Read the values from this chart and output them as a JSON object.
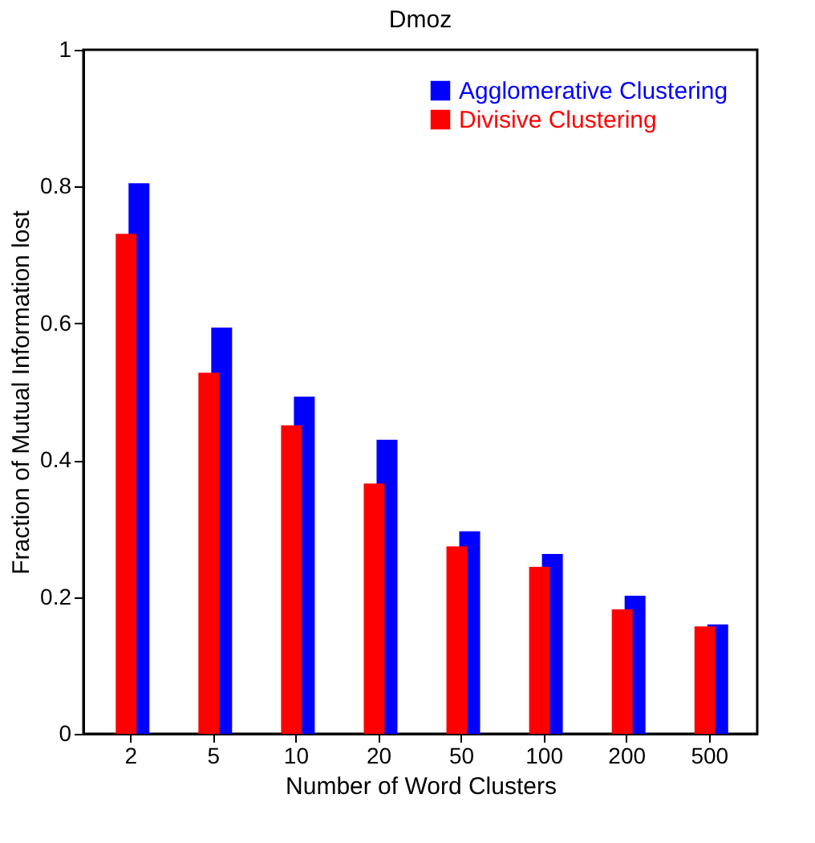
{
  "chart_data": {
    "type": "bar",
    "title": "Dmoz",
    "xlabel": "Number of Word Clusters",
    "ylabel": "Fraction of Mutual Information lost",
    "categories": [
      "2",
      "5",
      "10",
      "20",
      "50",
      "100",
      "200",
      "500"
    ],
    "series": [
      {
        "name": "Agglomerative Clustering",
        "color": "#0000ff",
        "values": [
          0.805,
          0.594,
          0.493,
          0.43,
          0.296,
          0.263,
          0.202,
          0.16
        ]
      },
      {
        "name": "Divisive Clustering",
        "color": "#ff0000",
        "values": [
          0.731,
          0.528,
          0.451,
          0.366,
          0.274,
          0.244,
          0.182,
          0.157
        ]
      }
    ],
    "ylim": [
      0,
      1
    ],
    "yticks": [
      0,
      0.2,
      0.4,
      0.6,
      0.8,
      1
    ],
    "grid": false,
    "legend": "top right"
  }
}
